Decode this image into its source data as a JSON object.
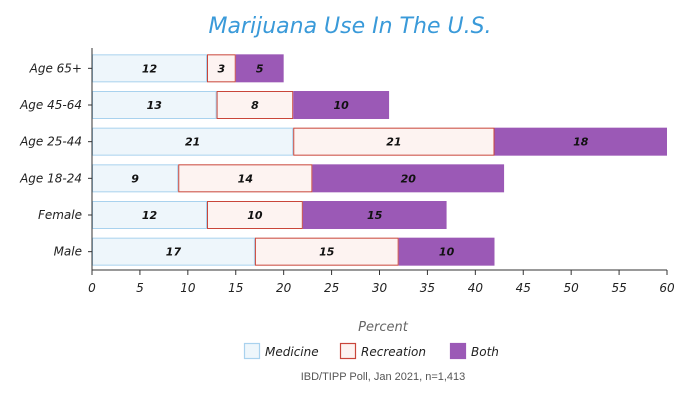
{
  "chart_data": {
    "type": "bar",
    "orientation": "horizontal",
    "stacked": true,
    "title": "Marijuana Use In The U.S.",
    "xlabel": "Percent",
    "ylabel": "",
    "xlim": [
      0,
      60
    ],
    "xticks": [
      0,
      5,
      10,
      15,
      20,
      25,
      30,
      35,
      40,
      45,
      50,
      55,
      60
    ],
    "categories": [
      "Age 65+",
      "Age 45-64",
      "Age 25-44",
      "Age 18-24",
      "Female",
      "Male"
    ],
    "series": [
      {
        "name": "Medicine",
        "values": [
          12,
          13,
          21,
          9,
          12,
          17
        ],
        "fill": "#eef6fb",
        "stroke": "#a9d2ee"
      },
      {
        "name": "Recreation",
        "values": [
          3,
          8,
          21,
          14,
          10,
          15
        ],
        "fill": "#fdf3f1",
        "stroke": "#c9453a"
      },
      {
        "name": "Both",
        "values": [
          5,
          10,
          18,
          20,
          15,
          10
        ],
        "fill": "#9b59b6",
        "stroke": "#9b59b6"
      }
    ],
    "legend": "bottom-center",
    "grid": false,
    "source": "IBD/TIPP Poll, Jan 2021, n=1,413"
  }
}
